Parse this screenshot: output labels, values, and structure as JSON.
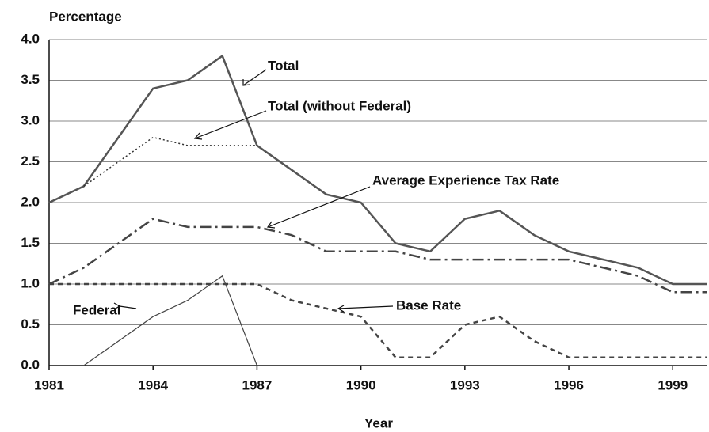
{
  "chart_data": {
    "type": "line",
    "y_label": "Percentage",
    "x_label": "Year",
    "x": [
      1981,
      1982,
      1983,
      1984,
      1985,
      1986,
      1987,
      1988,
      1989,
      1990,
      1991,
      1992,
      1993,
      1994,
      1995,
      1996,
      1997,
      1998,
      1999,
      2000
    ],
    "series": [
      {
        "name": "Total",
        "color": "#555555",
        "style": "solid",
        "width": 2.5,
        "values": [
          2.0,
          2.2,
          2.8,
          3.4,
          3.5,
          3.8,
          2.7,
          2.4,
          2.1,
          2.0,
          1.5,
          1.4,
          1.8,
          1.9,
          1.6,
          1.4,
          1.3,
          1.2,
          1.0,
          1.0
        ]
      },
      {
        "name": "Total (without Federal)",
        "color": "#333333",
        "style": "dotted",
        "width": 1.5,
        "values": [
          null,
          2.2,
          2.5,
          2.8,
          2.7,
          2.7,
          2.7,
          null,
          null,
          null,
          null,
          null,
          null,
          null,
          null,
          null,
          null,
          null,
          null,
          null
        ]
      },
      {
        "name": "Average Experience Tax Rate",
        "color": "#444444",
        "style": "dashdot",
        "width": 2.5,
        "values": [
          1.0,
          1.2,
          1.5,
          1.8,
          1.7,
          1.7,
          1.7,
          1.6,
          1.4,
          1.4,
          1.4,
          1.3,
          1.3,
          1.3,
          1.3,
          1.3,
          1.2,
          1.1,
          0.9,
          0.9
        ]
      },
      {
        "name": "Base Rate",
        "color": "#444444",
        "style": "dashed",
        "width": 2.5,
        "values": [
          1.0,
          1.0,
          1.0,
          1.0,
          1.0,
          1.0,
          1.0,
          0.8,
          0.7,
          0.6,
          0.1,
          0.1,
          0.5,
          0.6,
          0.3,
          0.1,
          0.1,
          0.1,
          0.1,
          0.1
        ]
      },
      {
        "name": "Federal",
        "color": "#444444",
        "style": "solid",
        "width": 1.2,
        "values": [
          null,
          0,
          0.3,
          0.6,
          0.8,
          1.1,
          0,
          null,
          null,
          null,
          null,
          null,
          null,
          null,
          null,
          null,
          null,
          null,
          null,
          null
        ]
      }
    ],
    "xlim": [
      1981,
      2000
    ],
    "xticks": [
      1981,
      1984,
      1987,
      1990,
      1993,
      1996,
      1999
    ],
    "ylim": [
      0,
      4.0
    ],
    "yticks": [
      {
        "value": 0,
        "label": "0.0"
      },
      0.5,
      {
        "value": 1,
        "label": "1.0"
      },
      1.5,
      {
        "value": 2,
        "label": "2.0"
      },
      2.5,
      {
        "value": 3,
        "label": "3.0"
      },
      3.5,
      {
        "value": 4,
        "label": "4.0"
      }
    ],
    "grid": true
  }
}
